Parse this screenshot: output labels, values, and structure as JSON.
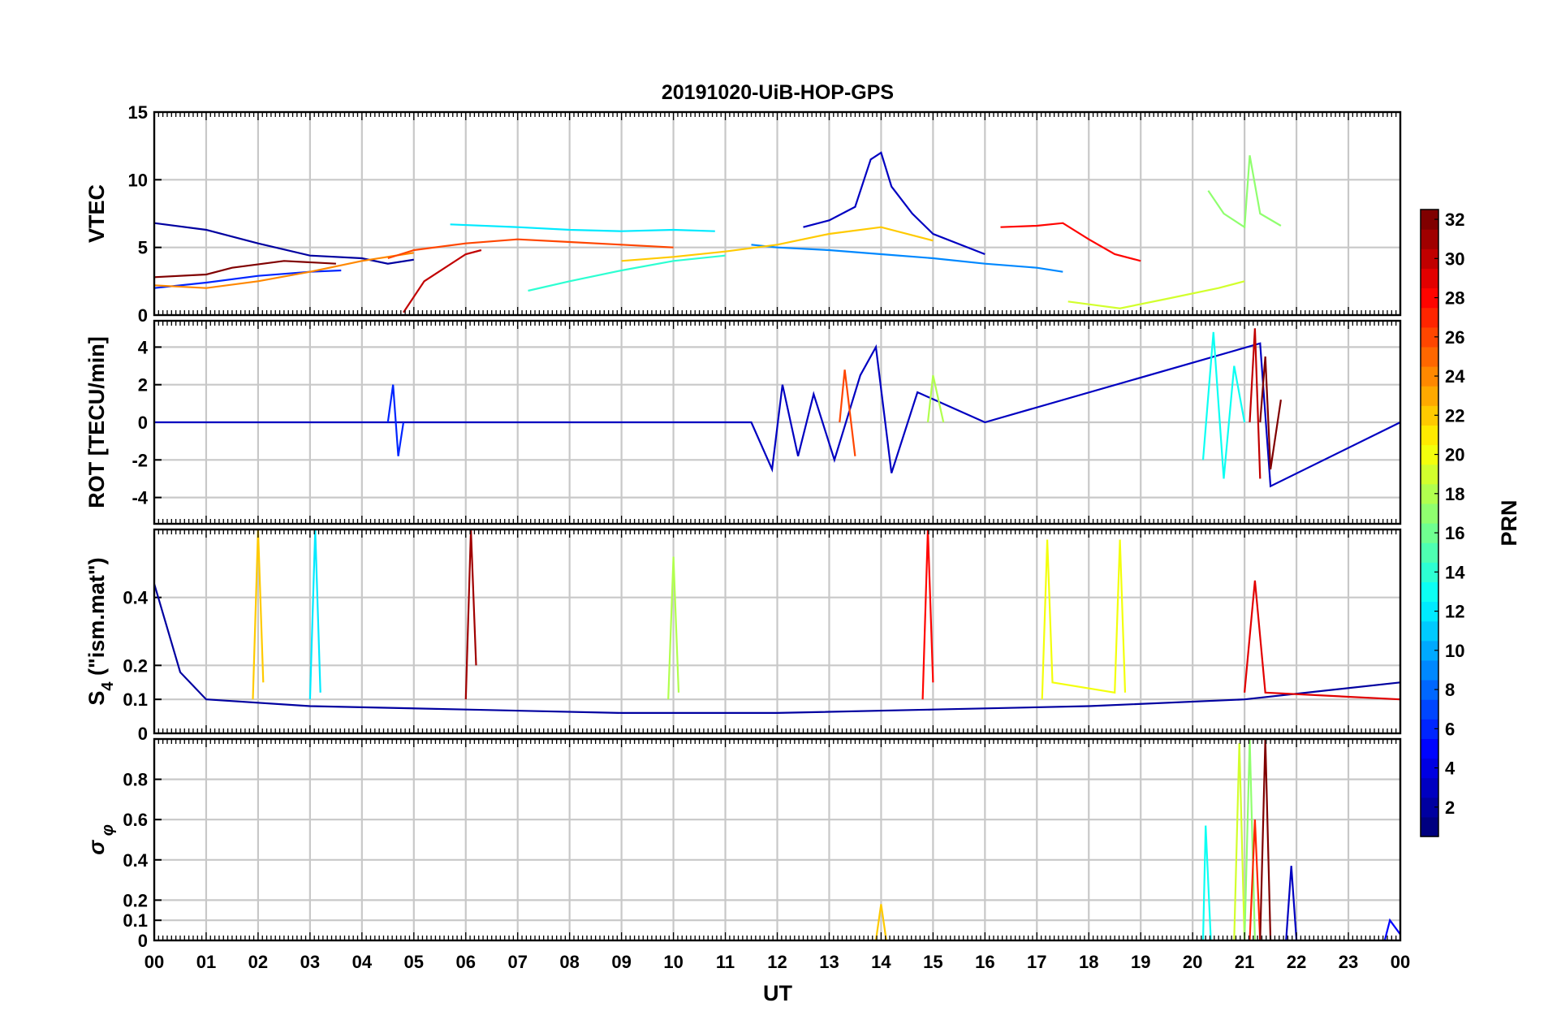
{
  "chart_data": {
    "type": "line",
    "title": "20191020-UiB-HOP-GPS",
    "xlabel": "UT",
    "x_ticks": [
      "00",
      "01",
      "02",
      "03",
      "04",
      "05",
      "06",
      "07",
      "08",
      "09",
      "10",
      "11",
      "12",
      "13",
      "14",
      "15",
      "16",
      "17",
      "18",
      "19",
      "20",
      "21",
      "22",
      "23",
      "00"
    ],
    "xlim": [
      0,
      24
    ],
    "panels": [
      {
        "id": "vtec",
        "ylabel": "VTEC",
        "ylim": [
          0,
          15
        ],
        "yticks": [
          0,
          5,
          10,
          15
        ],
        "ytick_labels": [
          "0",
          "5",
          "10",
          "15"
        ],
        "series": [
          {
            "prn": 2,
            "x": [
              0,
              1,
              2,
              3,
              4,
              4.5,
              5
            ],
            "y": [
              6.8,
              6.3,
              5.3,
              4.4,
              4.2,
              3.8,
              4.1
            ]
          },
          {
            "prn": 3,
            "x": [
              12.5,
              13,
              13.5,
              13.8,
              14,
              14.2,
              14.6,
              15,
              16
            ],
            "y": [
              6.5,
              7.0,
              8.0,
              11.5,
              12.0,
              9.5,
              7.5,
              6.0,
              4.5
            ]
          },
          {
            "prn": 6,
            "x": [
              0,
              1,
              2,
              3,
              3.6
            ],
            "y": [
              2.0,
              2.4,
              2.9,
              3.2,
              3.3
            ]
          },
          {
            "prn": 9,
            "x": [
              11.5,
              12,
              13,
              14,
              15,
              16,
              17,
              17.5
            ],
            "y": [
              5.2,
              5.0,
              4.8,
              4.5,
              4.2,
              3.8,
              3.5,
              3.2
            ]
          },
          {
            "prn": 12,
            "x": [
              5.7,
              7,
              8,
              9,
              10,
              10.8
            ],
            "y": [
              6.7,
              6.5,
              6.3,
              6.2,
              6.3,
              6.2
            ]
          },
          {
            "prn": 14,
            "x": [
              7.2,
              8,
              9,
              10,
              11
            ],
            "y": [
              1.8,
              2.5,
              3.3,
              4.0,
              4.4
            ]
          },
          {
            "prn": 17,
            "x": [
              20.3,
              20.6,
              21,
              21.1,
              21.3,
              21.7
            ],
            "y": [
              9.2,
              7.5,
              6.5,
              11.8,
              7.5,
              6.6
            ]
          },
          {
            "prn": 19,
            "x": [
              17.6,
              18.0,
              18.6,
              19.5,
              20.5,
              21
            ],
            "y": [
              1.0,
              0.8,
              0.5,
              1.2,
              2.0,
              2.5
            ]
          },
          {
            "prn": 22,
            "x": [
              9,
              10,
              11,
              12,
              13,
              14,
              15
            ],
            "y": [
              4.0,
              4.3,
              4.7,
              5.2,
              6.0,
              6.5,
              5.5
            ]
          },
          {
            "prn": 24,
            "x": [
              0,
              1,
              2,
              3,
              4,
              5
            ],
            "y": [
              2.2,
              2.0,
              2.5,
              3.2,
              4.0,
              4.6
            ]
          },
          {
            "prn": 26,
            "x": [
              4.5,
              5,
              6,
              7,
              8,
              9,
              10
            ],
            "y": [
              4.2,
              4.8,
              5.3,
              5.6,
              5.4,
              5.2,
              5.0
            ]
          },
          {
            "prn": 28,
            "x": [
              16.3,
              17,
              17.5,
              18,
              18.5,
              19
            ],
            "y": [
              6.5,
              6.6,
              6.8,
              5.6,
              4.5,
              4.0
            ]
          },
          {
            "prn": 30,
            "x": [
              4.8,
              5.2,
              6,
              6.3
            ],
            "y": [
              0.2,
              2.5,
              4.5,
              4.8
            ]
          },
          {
            "prn": 32,
            "x": [
              0,
              1,
              1.5,
              2.5,
              3.5
            ],
            "y": [
              2.8,
              3.0,
              3.5,
              4.0,
              3.8
            ]
          }
        ]
      },
      {
        "id": "rot",
        "ylabel": "ROT [TECU/min]",
        "ylim": [
          -5.4,
          5.4
        ],
        "yticks": [
          -4,
          -2,
          0,
          2,
          4
        ],
        "ytick_labels": [
          "-4",
          "-2",
          "0",
          "2",
          "4"
        ],
        "series": [
          {
            "prn": 3,
            "x": [
              0,
              11.5,
              11.9,
              12.1,
              12.4,
              12.7,
              13.1,
              13.6,
              13.9,
              14.2,
              14.7,
              16,
              21.3,
              21.5,
              24
            ],
            "y": [
              0,
              0,
              -2.5,
              2.0,
              -1.8,
              1.5,
              -2.0,
              2.5,
              4.0,
              -2.7,
              1.6,
              0,
              4.2,
              -3.4,
              0
            ]
          },
          {
            "prn": 6,
            "x": [
              4.5,
              4.6,
              4.7,
              4.8
            ],
            "y": [
              0,
              2.0,
              -1.8,
              0
            ]
          },
          {
            "prn": 13,
            "x": [
              20.2,
              20.4,
              20.6,
              20.8,
              21
            ],
            "y": [
              -2.0,
              4.8,
              -3.0,
              3.0,
              0
            ]
          },
          {
            "prn": 18,
            "x": [
              14.9,
              15.0,
              15.2
            ],
            "y": [
              0,
              2.5,
              0
            ]
          },
          {
            "prn": 26,
            "x": [
              13.2,
              13.3,
              13.5
            ],
            "y": [
              0,
              2.8,
              -1.8
            ]
          },
          {
            "prn": 30,
            "x": [
              21.1,
              21.2,
              21.3
            ],
            "y": [
              0,
              5.0,
              -3.0
            ]
          },
          {
            "prn": 32,
            "x": [
              21.3,
              21.4,
              21.5,
              21.7
            ],
            "y": [
              0,
              3.5,
              -2.5,
              1.2
            ]
          }
        ]
      },
      {
        "id": "s4",
        "ylabel": "S_4 (\"ism.mat\")",
        "ylim": [
          0,
          0.6
        ],
        "yticks": [
          0,
          0.1,
          0.2,
          0.4
        ],
        "ytick_labels": [
          "0",
          "0.1",
          "0.2",
          "0.4"
        ],
        "series": [
          {
            "prn": 2,
            "x": [
              0,
              0.5,
              1,
              3,
              6,
              9,
              12,
              15,
              18,
              21,
              24
            ],
            "y": [
              0.44,
              0.18,
              0.1,
              0.08,
              0.07,
              0.06,
              0.06,
              0.07,
              0.08,
              0.1,
              0.15
            ]
          },
          {
            "prn": 12,
            "x": [
              3.0,
              3.1,
              3.2
            ],
            "y": [
              0.1,
              0.6,
              0.12
            ]
          },
          {
            "prn": 18,
            "x": [
              9.9,
              10.0,
              10.1
            ],
            "y": [
              0.1,
              0.52,
              0.12
            ]
          },
          {
            "prn": 20,
            "x": [
              17.1,
              17.2,
              17.3,
              18.5,
              18.6,
              18.7
            ],
            "y": [
              0.1,
              0.57,
              0.15,
              0.12,
              0.57,
              0.12
            ]
          },
          {
            "prn": 22,
            "x": [
              1.9,
              2.0,
              2.1
            ],
            "y": [
              0.1,
              0.6,
              0.15
            ]
          },
          {
            "prn": 28,
            "x": [
              14.8,
              14.9,
              15.0
            ],
            "y": [
              0.1,
              0.6,
              0.15
            ]
          },
          {
            "prn": 31,
            "x": [
              6.0,
              6.1,
              6.2
            ],
            "y": [
              0.1,
              0.6,
              0.2
            ]
          },
          {
            "prn": 29,
            "x": [
              21.0,
              21.2,
              21.4,
              24
            ],
            "y": [
              0.12,
              0.45,
              0.12,
              0.1
            ]
          }
        ]
      },
      {
        "id": "sigma",
        "ylabel": "σ_φ",
        "ylim": [
          0,
          1.0
        ],
        "yticks": [
          0,
          0.1,
          0.2,
          0.4,
          0.6,
          0.8
        ],
        "ytick_labels": [
          "0",
          "0.1",
          "0.2",
          "0.4",
          "0.6",
          "0.8"
        ],
        "series": [
          {
            "prn": 13,
            "x": [
              20.2,
              20.25,
              20.35
            ],
            "y": [
              0.0,
              0.57,
              0.0
            ]
          },
          {
            "prn": 19,
            "x": [
              20.8,
              20.9,
              21.0
            ],
            "y": [
              0.0,
              0.98,
              0.0
            ]
          },
          {
            "prn": 17,
            "x": [
              21.0,
              21.1,
              21.2
            ],
            "y": [
              0.0,
              1.0,
              0.0
            ]
          },
          {
            "prn": 27,
            "x": [
              21.1,
              21.2,
              21.3
            ],
            "y": [
              0.0,
              0.6,
              0.0
            ]
          },
          {
            "prn": 32,
            "x": [
              21.3,
              21.4,
              21.5
            ],
            "y": [
              0.0,
              1.0,
              0.0
            ]
          },
          {
            "prn": 3,
            "x": [
              21.8,
              21.9,
              22.0
            ],
            "y": [
              0.0,
              0.37,
              0.0
            ]
          },
          {
            "prn": 22,
            "x": [
              13.9,
              14.0,
              14.1
            ],
            "y": [
              0.0,
              0.18,
              0.0
            ]
          },
          {
            "prn": 5,
            "x": [
              23.7,
              23.8,
              24
            ],
            "y": [
              0.0,
              0.1,
              0.03
            ]
          }
        ]
      }
    ],
    "colorbar": {
      "label": "PRN",
      "range": [
        1,
        32
      ],
      "ticks": [
        2,
        4,
        6,
        8,
        10,
        12,
        14,
        16,
        18,
        20,
        22,
        24,
        26,
        28,
        30,
        32
      ],
      "colormap": "jet"
    },
    "grid": true
  }
}
